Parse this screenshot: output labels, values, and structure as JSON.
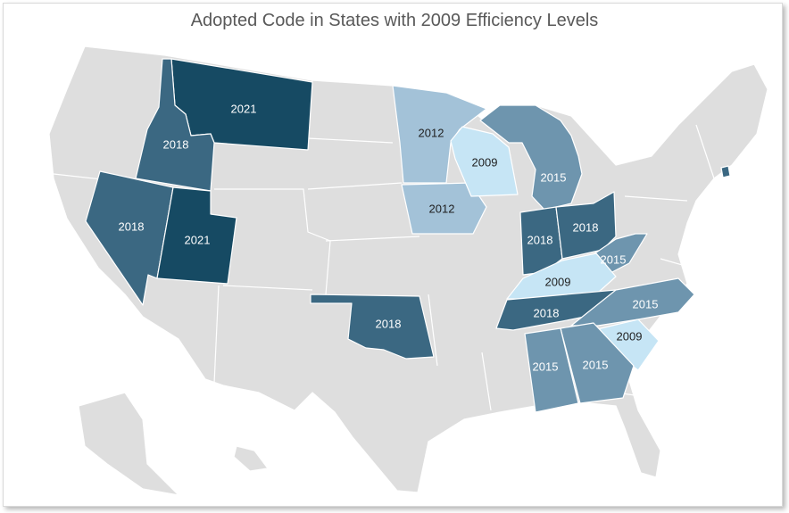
{
  "title": "Adopted Code in States with 2009 Efficiency Levels",
  "colors": {
    "2021": "#164a63",
    "2018": "#3b6882",
    "2015": "#6e95ae",
    "2012": "#a3c2d8",
    "2009": "#c6e5f5",
    "none": "#dedede",
    "border": "#ffffff"
  },
  "states": [
    {
      "name": "Montana",
      "code": "2021"
    },
    {
      "name": "Utah",
      "code": "2021"
    },
    {
      "name": "Idaho",
      "code": "2018"
    },
    {
      "name": "Nevada",
      "code": "2018"
    },
    {
      "name": "Oklahoma",
      "code": "2018"
    },
    {
      "name": "Indiana",
      "code": "2018"
    },
    {
      "name": "Ohio",
      "code": "2018"
    },
    {
      "name": "Tennessee",
      "code": "2018"
    },
    {
      "name": "Rhode Island",
      "code": "2018"
    },
    {
      "name": "Minnesota",
      "code": "2012"
    },
    {
      "name": "Iowa",
      "code": "2012"
    },
    {
      "name": "Wisconsin",
      "code": "2009"
    },
    {
      "name": "Kentucky",
      "code": "2009"
    },
    {
      "name": "South Carolina",
      "code": "2009"
    },
    {
      "name": "Michigan",
      "code": "2015"
    },
    {
      "name": "West Virginia",
      "code": "2015"
    },
    {
      "name": "North Carolina",
      "code": "2015"
    },
    {
      "name": "Alabama",
      "code": "2015"
    },
    {
      "name": "Georgia",
      "code": "2015"
    }
  ]
}
